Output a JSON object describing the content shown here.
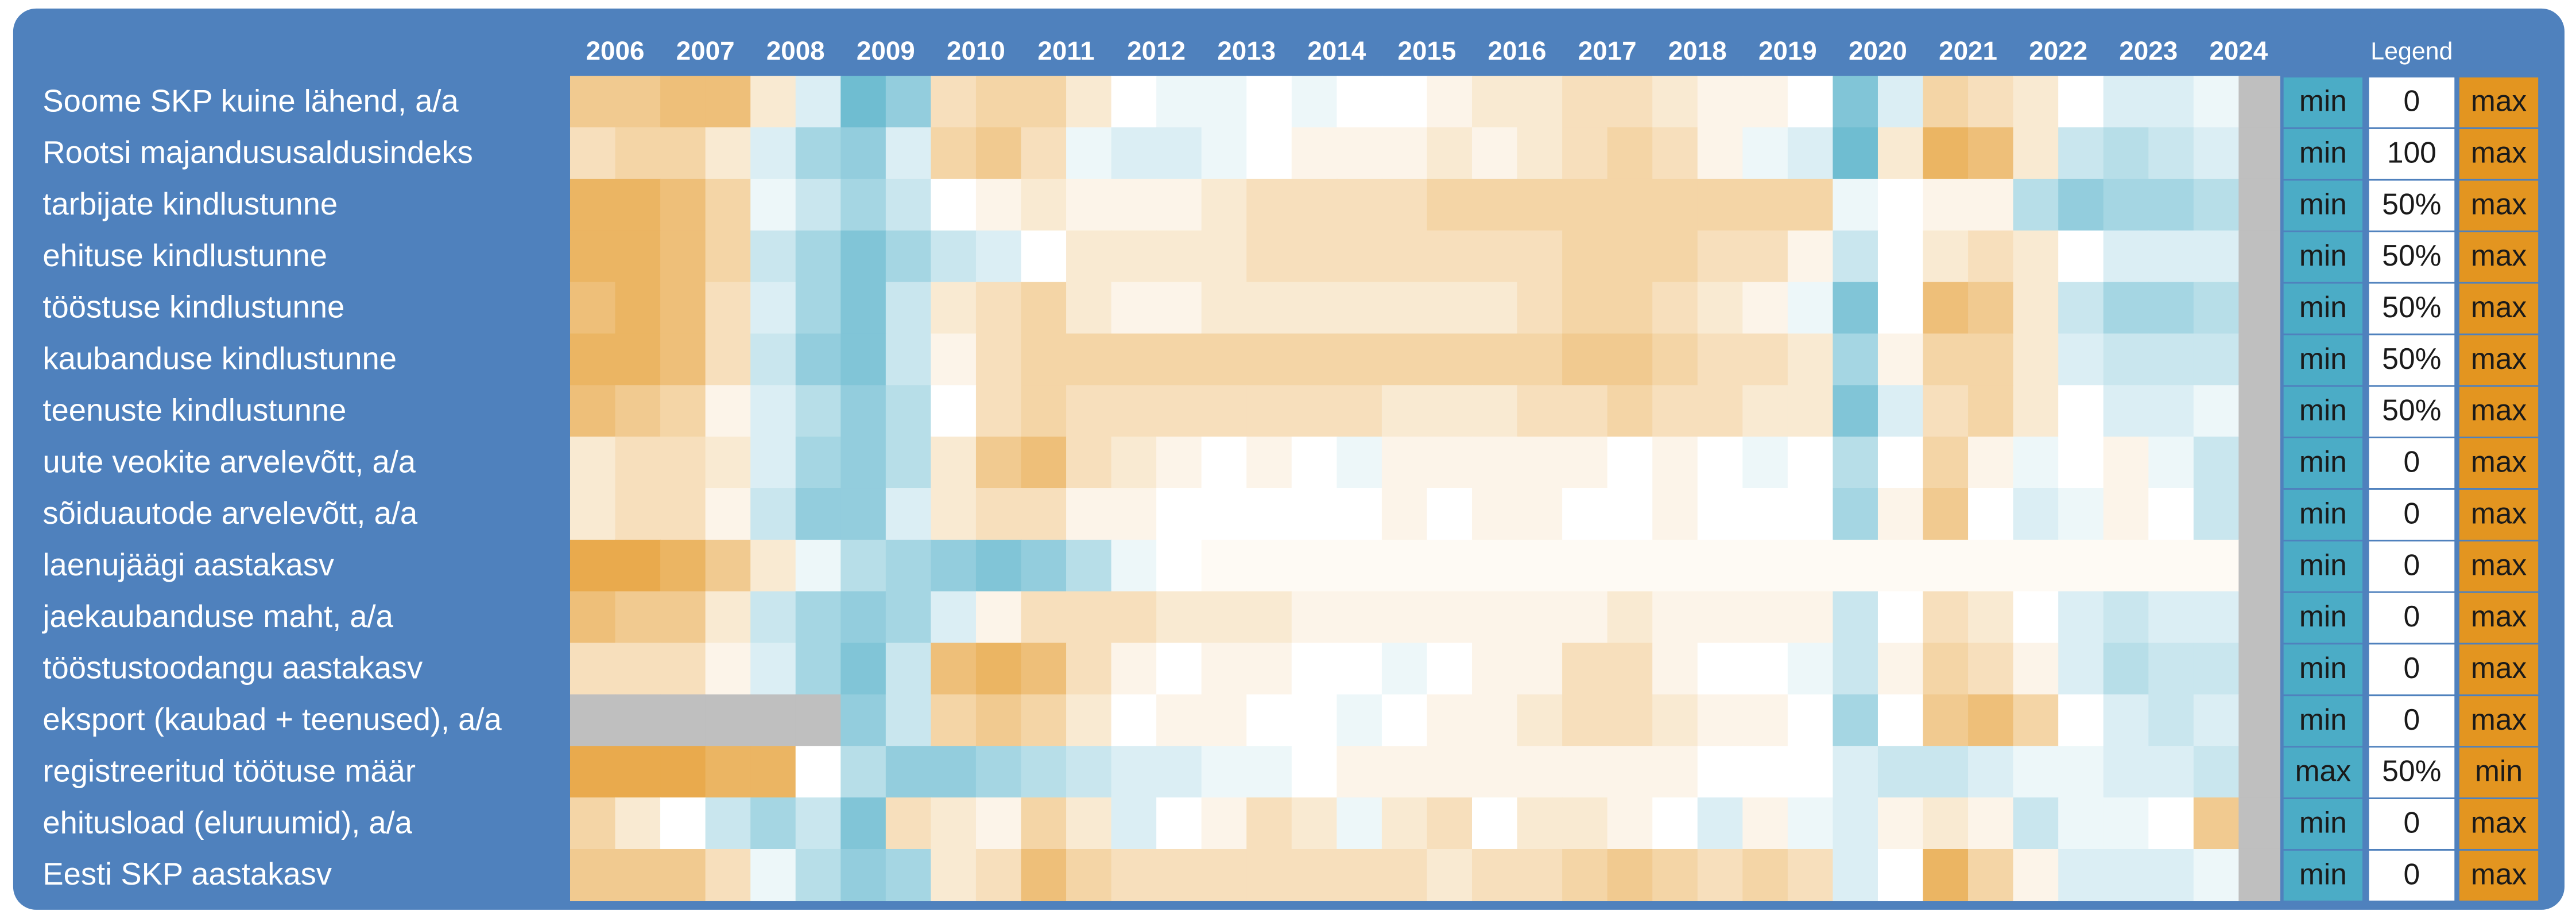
{
  "chart_data": {
    "type": "heatmap",
    "years": [
      "2006",
      "2007",
      "2008",
      "2009",
      "2010",
      "2011",
      "2012",
      "2013",
      "2014",
      "2015",
      "2016",
      "2017",
      "2018",
      "2019",
      "2020",
      "2021",
      "2022",
      "2023",
      "2024"
    ],
    "legend_title": "Legend",
    "vlim": [
      -1,
      1
    ],
    "low_color": "#4bacc6",
    "mid_color": "#ffffff",
    "high_color": "#e39520",
    "missing_color": "#bfbfbf",
    "series": [
      {
        "name": "Soome SKP kuine lähend, a/a",
        "legend": [
          "min",
          "0",
          "max"
        ],
        "values": [
          0.5,
          0.5,
          0.6,
          0.6,
          0.2,
          -0.2,
          -0.8,
          -0.6,
          0.3,
          0.4,
          0.4,
          0.2,
          0,
          -0.1,
          -0.1,
          0,
          -0.1,
          0,
          0,
          0.1,
          0.2,
          0.2,
          0.3,
          0.3,
          0.2,
          0.1,
          0.1,
          0,
          -0.7,
          -0.2,
          0.4,
          0.3,
          0.2,
          0,
          -0.2,
          -0.2,
          -0.1
        ]
      },
      {
        "name": "Rootsi majandususaldusindeks",
        "legend": [
          "min",
          "100",
          "max"
        ],
        "values": [
          0.3,
          0.4,
          0.4,
          0.2,
          -0.2,
          -0.5,
          -0.6,
          -0.2,
          0.4,
          0.5,
          0.3,
          -0.1,
          -0.2,
          -0.2,
          -0.1,
          0,
          0.1,
          0.1,
          0.1,
          0.2,
          0.1,
          0.2,
          0.3,
          0.4,
          0.3,
          0.1,
          -0.1,
          -0.2,
          -0.8,
          0.2,
          0.7,
          0.6,
          0.2,
          -0.3,
          -0.4,
          -0.3,
          -0.2
        ]
      },
      {
        "name": "tarbijate kindlustunne",
        "legend": [
          "min",
          "50%",
          "max"
        ],
        "values": [
          0.7,
          0.7,
          0.6,
          0.4,
          -0.1,
          -0.3,
          -0.5,
          -0.3,
          0,
          0.1,
          0.2,
          0.1,
          0.1,
          0.1,
          0.2,
          0.3,
          0.3,
          0.3,
          0.3,
          0.4,
          0.4,
          0.4,
          0.4,
          0.4,
          0.4,
          0.4,
          0.4,
          0.4,
          -0.1,
          0,
          0.1,
          0.1,
          -0.4,
          -0.6,
          -0.5,
          -0.5,
          -0.4
        ]
      },
      {
        "name": "ehituse kindlustunne",
        "legend": [
          "min",
          "50%",
          "max"
        ],
        "values": [
          0.7,
          0.7,
          0.6,
          0.4,
          -0.3,
          -0.5,
          -0.7,
          -0.5,
          -0.3,
          -0.2,
          0,
          0.2,
          0.2,
          0.2,
          0.2,
          0.3,
          0.3,
          0.3,
          0.3,
          0.3,
          0.3,
          0.3,
          0.4,
          0.4,
          0.4,
          0.3,
          0.3,
          0.1,
          -0.3,
          0,
          0.2,
          0.3,
          0.2,
          0,
          -0.2,
          -0.2,
          -0.2
        ]
      },
      {
        "name": "tööstuse kindlustunne",
        "legend": [
          "min",
          "50%",
          "max"
        ],
        "values": [
          0.6,
          0.7,
          0.6,
          0.3,
          -0.2,
          -0.5,
          -0.7,
          -0.3,
          0.2,
          0.3,
          0.4,
          0.2,
          0.1,
          0.1,
          0.2,
          0.2,
          0.2,
          0.2,
          0.2,
          0.2,
          0.2,
          0.3,
          0.4,
          0.4,
          0.3,
          0.2,
          0.1,
          -0.1,
          -0.7,
          0,
          0.6,
          0.5,
          0.2,
          -0.3,
          -0.5,
          -0.5,
          -0.4
        ]
      },
      {
        "name": "kaubanduse kindlustunne",
        "legend": [
          "min",
          "50%",
          "max"
        ],
        "values": [
          0.7,
          0.7,
          0.6,
          0.3,
          -0.3,
          -0.6,
          -0.7,
          -0.3,
          0.1,
          0.3,
          0.4,
          0.4,
          0.4,
          0.4,
          0.4,
          0.4,
          0.4,
          0.4,
          0.4,
          0.4,
          0.4,
          0.4,
          0.5,
          0.5,
          0.4,
          0.3,
          0.3,
          0.2,
          -0.5,
          0.1,
          0.4,
          0.4,
          0.2,
          -0.2,
          -0.3,
          -0.3,
          -0.3
        ]
      },
      {
        "name": "teenuste kindlustunne",
        "legend": [
          "min",
          "50%",
          "max"
        ],
        "values": [
          0.6,
          0.5,
          0.4,
          0.1,
          -0.2,
          -0.4,
          -0.6,
          -0.4,
          0,
          0.3,
          0.4,
          0.3,
          0.3,
          0.3,
          0.3,
          0.3,
          0.3,
          0.3,
          0.2,
          0.2,
          0.2,
          0.3,
          0.3,
          0.4,
          0.3,
          0.3,
          0.2,
          0.2,
          -0.7,
          -0.2,
          0.3,
          0.4,
          0.2,
          0,
          -0.2,
          -0.2,
          -0.1
        ]
      },
      {
        "name": "uute veokite arvelevõtt, a/a",
        "legend": [
          "min",
          "0",
          "max"
        ],
        "values": [
          0.2,
          0.3,
          0.3,
          0.2,
          -0.2,
          -0.5,
          -0.6,
          -0.4,
          0.2,
          0.5,
          0.6,
          0.3,
          0.2,
          0.1,
          0,
          0.1,
          0,
          -0.1,
          0.1,
          0.1,
          0.1,
          0.1,
          0.1,
          0,
          0.1,
          0,
          -0.1,
          0,
          -0.4,
          0,
          0.4,
          0.1,
          -0.1,
          0,
          0.1,
          -0.1,
          -0.3
        ]
      },
      {
        "name": "sõiduautode arvelevõtt, a/a",
        "legend": [
          "min",
          "0",
          "max"
        ],
        "values": [
          0.2,
          0.3,
          0.3,
          0.1,
          -0.3,
          -0.6,
          -0.6,
          -0.2,
          0.2,
          0.3,
          0.3,
          0.1,
          0.1,
          0,
          0,
          0,
          0,
          0,
          0.1,
          0,
          0.1,
          0.1,
          0,
          0,
          0.1,
          0,
          0,
          0,
          -0.5,
          0.1,
          0.5,
          0,
          -0.2,
          -0.1,
          0.1,
          0,
          -0.3
        ]
      },
      {
        "name": "laenujäägi aastakasv",
        "legend": [
          "min",
          "0",
          "max"
        ],
        "values": [
          0.8,
          0.8,
          0.7,
          0.5,
          0.2,
          -0.1,
          -0.4,
          -0.5,
          -0.6,
          -0.7,
          -0.6,
          -0.4,
          -0.1,
          0,
          0.05,
          0.05,
          0.05,
          0.05,
          0.05,
          0.05,
          0.05,
          0.05,
          0.05,
          0.05,
          0.05,
          0.05,
          0.05,
          0.05,
          0.05,
          0.05,
          0.05,
          0.05,
          0.05,
          0.05,
          0.05,
          0.05,
          0.05
        ]
      },
      {
        "name": "jaekaubanduse maht, a/a",
        "legend": [
          "min",
          "0",
          "max"
        ],
        "values": [
          0.6,
          0.5,
          0.5,
          0.2,
          -0.3,
          -0.5,
          -0.6,
          -0.5,
          -0.2,
          0.1,
          0.3,
          0.3,
          0.3,
          0.2,
          0.2,
          0.2,
          0.1,
          0.1,
          0.1,
          0.1,
          0.1,
          0.1,
          0.1,
          0.2,
          0.1,
          0.1,
          0.1,
          0.1,
          -0.3,
          0,
          0.3,
          0.2,
          0,
          -0.2,
          -0.3,
          -0.2,
          -0.2
        ]
      },
      {
        "name": "tööstustoodangu aastakasv",
        "legend": [
          "min",
          "0",
          "max"
        ],
        "values": [
          0.3,
          0.3,
          0.3,
          0.1,
          -0.2,
          -0.5,
          -0.7,
          -0.3,
          0.6,
          0.7,
          0.6,
          0.3,
          0.1,
          0,
          0.1,
          0.1,
          0,
          0,
          -0.1,
          0,
          0.1,
          0.1,
          0.3,
          0.3,
          0.1,
          0,
          0,
          -0.1,
          -0.3,
          0.1,
          0.4,
          0.3,
          0.1,
          -0.2,
          -0.4,
          -0.3,
          -0.3
        ]
      },
      {
        "name": "eksport (kaubad + teenused), a/a",
        "legend": [
          "min",
          "0",
          "max"
        ],
        "values": [
          null,
          null,
          null,
          null,
          null,
          null,
          -0.6,
          -0.3,
          0.4,
          0.5,
          0.4,
          0.2,
          0,
          0.1,
          0.1,
          0,
          0,
          -0.1,
          0,
          0.1,
          0.1,
          0.2,
          0.3,
          0.3,
          0.2,
          0.1,
          0.1,
          0,
          -0.5,
          0,
          0.5,
          0.6,
          0.4,
          0,
          -0.2,
          -0.3,
          -0.2
        ]
      },
      {
        "name": "registreeritud töötuse määr",
        "legend": [
          "max",
          "50%",
          "min"
        ],
        "values": [
          0.8,
          0.8,
          0.8,
          0.7,
          0.7,
          0,
          -0.4,
          -0.6,
          -0.6,
          -0.5,
          -0.4,
          -0.3,
          -0.2,
          -0.2,
          -0.1,
          -0.1,
          0,
          0.1,
          0.1,
          0.1,
          0.1,
          0.1,
          0.1,
          0.1,
          0.1,
          0,
          0,
          0,
          -0.2,
          -0.3,
          -0.3,
          -0.2,
          -0.1,
          -0.1,
          -0.2,
          -0.2,
          -0.3
        ]
      },
      {
        "name": "ehitusload (eluruumid), a/a",
        "legend": [
          "min",
          "0",
          "max"
        ],
        "values": [
          0.4,
          0.2,
          0,
          -0.3,
          -0.5,
          -0.3,
          -0.7,
          0.3,
          0.2,
          0.1,
          0.4,
          0.2,
          -0.2,
          0,
          0.1,
          0.3,
          0.2,
          -0.1,
          0.2,
          0.3,
          0,
          0.2,
          0.2,
          0.1,
          0,
          -0.2,
          0.1,
          -0.1,
          -0.2,
          0.1,
          0.2,
          0.1,
          -0.3,
          -0.1,
          -0.1,
          0,
          0.5
        ]
      },
      {
        "name": "Eesti SKP aastakasv",
        "legend": [
          "min",
          "0",
          "max"
        ],
        "values": [
          0.5,
          0.5,
          0.5,
          0.3,
          -0.1,
          -0.4,
          -0.6,
          -0.5,
          0.2,
          0.3,
          0.6,
          0.4,
          0.3,
          0.3,
          0.3,
          0.3,
          0.3,
          0.3,
          0.3,
          0.2,
          0.3,
          0.3,
          0.4,
          0.5,
          0.4,
          0.3,
          0.4,
          0.3,
          -0.2,
          0,
          0.7,
          0.4,
          0.1,
          -0.2,
          -0.2,
          -0.2,
          -0.1
        ]
      }
    ]
  }
}
